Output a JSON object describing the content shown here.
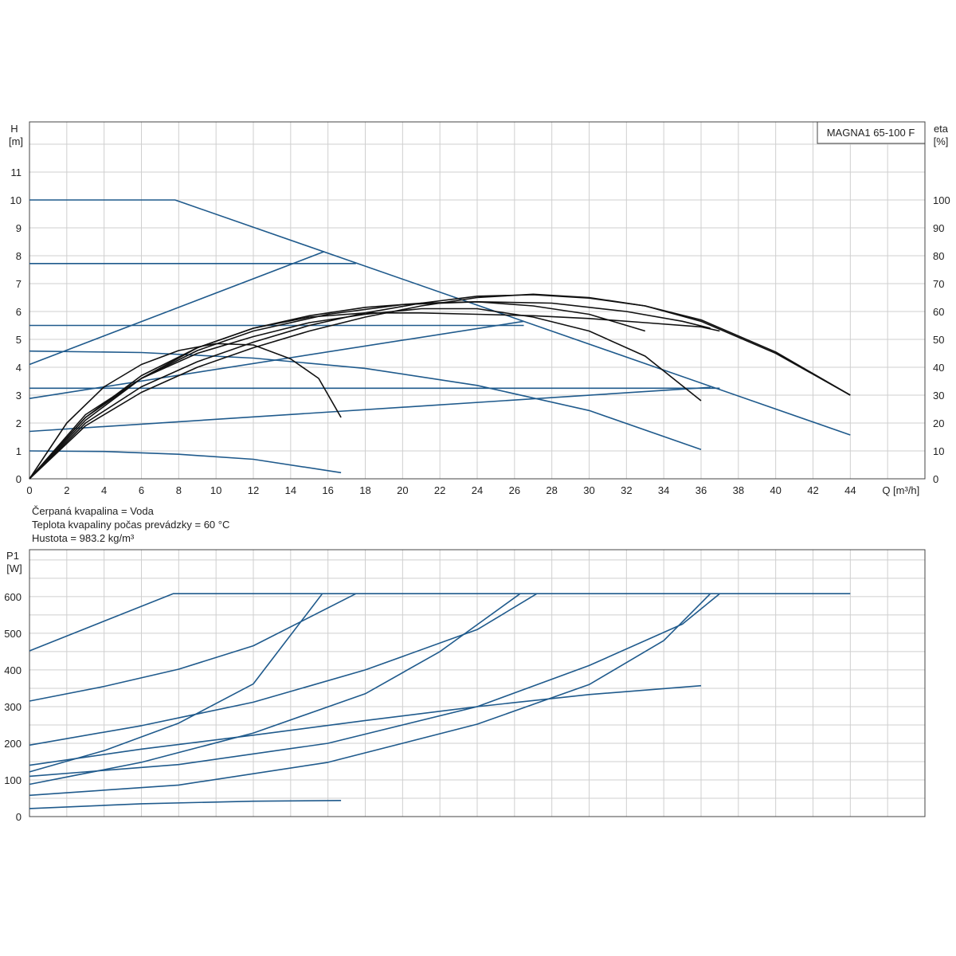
{
  "model_label": "MAGNA1 65-100 F",
  "fluid_info": [
    "Čerpaná kvapalina = Voda",
    "Teplota kvapaliny počas prevádzky = 60 °C",
    "Hustota = 983.2 kg/m³"
  ],
  "colors": {
    "blue": "#1f5a8c",
    "black": "#111111",
    "grid": "#cfcfcf"
  },
  "chart_data": [
    {
      "type": "line",
      "title": "MAGNA1 65-100 F",
      "xlabel": "Q [m³/h]",
      "ylabel_lines": [
        "H",
        "[m]"
      ],
      "y2label_lines": [
        "eta",
        "[%]"
      ],
      "xlim": [
        0,
        48
      ],
      "ylim": [
        0,
        12.8
      ],
      "y2lim": [
        0,
        128
      ],
      "x_ticks": [
        0,
        2,
        4,
        6,
        8,
        10,
        12,
        14,
        16,
        18,
        20,
        22,
        24,
        26,
        28,
        30,
        32,
        34,
        36,
        38,
        40,
        42,
        44
      ],
      "y_ticks": [
        0,
        1,
        2,
        3,
        4,
        5,
        6,
        7,
        8,
        9,
        10,
        11
      ],
      "y2_ticks": [
        0,
        10,
        20,
        30,
        40,
        50,
        60,
        70,
        80,
        90,
        100
      ],
      "grid": true,
      "series": [
        {
          "group": "H",
          "color": "blue",
          "points": [
            [
              0,
              10
            ],
            [
              7.8,
              10
            ],
            [
              44,
              1.57
            ]
          ]
        },
        {
          "group": "H",
          "color": "blue",
          "points": [
            [
              0,
              7.72
            ],
            [
              17.5,
              7.72
            ]
          ]
        },
        {
          "group": "H",
          "color": "blue",
          "points": [
            [
              0,
              5.5
            ],
            [
              26.5,
              5.5
            ]
          ]
        },
        {
          "group": "H",
          "color": "blue",
          "points": [
            [
              0,
              3.25
            ],
            [
              37,
              3.25
            ]
          ]
        },
        {
          "group": "H",
          "color": "blue",
          "points": [
            [
              0,
              4.1
            ],
            [
              15.8,
              8.15
            ]
          ]
        },
        {
          "group": "H",
          "color": "blue",
          "points": [
            [
              0,
              2.88
            ],
            [
              26.5,
              5.65
            ]
          ]
        },
        {
          "group": "H",
          "color": "blue",
          "points": [
            [
              0,
              1.7
            ],
            [
              36.5,
              3.28
            ]
          ]
        },
        {
          "group": "H",
          "color": "blue",
          "points": [
            [
              0,
              4.58
            ],
            [
              6,
              4.53
            ],
            [
              12,
              4.33
            ],
            [
              18,
              3.96
            ],
            [
              24,
              3.35
            ],
            [
              30,
              2.45
            ],
            [
              36,
              1.05
            ]
          ]
        },
        {
          "group": "H",
          "color": "blue",
          "points": [
            [
              0,
              1.0
            ],
            [
              4,
              0.98
            ],
            [
              8,
              0.88
            ],
            [
              12,
              0.7
            ],
            [
              16.7,
              0.22
            ]
          ]
        },
        {
          "group": "eta",
          "color": "black",
          "points": [
            [
              0,
              0
            ],
            [
              2,
              20
            ],
            [
              4,
              33
            ],
            [
              6,
              41
            ],
            [
              8,
              46
            ],
            [
              10,
              48.5
            ],
            [
              12,
              48
            ],
            [
              14,
              43
            ],
            [
              15.5,
              36
            ],
            [
              16.7,
              22
            ]
          ]
        },
        {
          "group": "eta",
          "color": "black",
          "points": [
            [
              0,
              0
            ],
            [
              3,
              23
            ],
            [
              6,
              36
            ],
            [
              9,
              45
            ],
            [
              12,
              51
            ],
            [
              15,
              56
            ],
            [
              18,
              59
            ],
            [
              21,
              61
            ],
            [
              24,
              61
            ],
            [
              27,
              58
            ],
            [
              30,
              53
            ],
            [
              33,
              44
            ],
            [
              36,
              28
            ]
          ]
        },
        {
          "group": "eta",
          "color": "black",
          "points": [
            [
              0,
              0
            ],
            [
              3,
              22
            ],
            [
              6,
              36
            ],
            [
              9,
              47
            ],
            [
              12,
              54
            ],
            [
              15,
              58.5
            ],
            [
              18,
              61.5
            ],
            [
              21,
              63
            ],
            [
              24,
              63.5
            ],
            [
              27,
              62
            ],
            [
              30,
              59
            ],
            [
              33,
              53
            ]
          ]
        },
        {
          "group": "eta",
          "color": "black",
          "points": [
            [
              0,
              0
            ],
            [
              3,
              22
            ],
            [
              6,
              37
            ],
            [
              9,
              47
            ],
            [
              12,
              54
            ],
            [
              15,
              58
            ],
            [
              18,
              59.5
            ],
            [
              21,
              59.5
            ],
            [
              24,
              59
            ],
            [
              27,
              58.5
            ],
            [
              30,
              57.5
            ],
            [
              33,
              56
            ],
            [
              36,
              54.5
            ],
            [
              37,
              53
            ]
          ]
        },
        {
          "group": "eta",
          "color": "black",
          "points": [
            [
              0,
              0
            ],
            [
              3,
              21
            ],
            [
              6,
              36
            ],
            [
              9,
              46
            ],
            [
              12,
              53
            ],
            [
              16,
              59
            ],
            [
              20,
              62.5
            ],
            [
              24,
              63.5
            ],
            [
              28,
              63
            ],
            [
              32,
              60
            ],
            [
              35,
              56.5
            ],
            [
              36.5,
              54
            ]
          ]
        },
        {
          "group": "eta",
          "color": "black",
          "points": [
            [
              0,
              0
            ],
            [
              3,
              20
            ],
            [
              6,
              33
            ],
            [
              9,
              42
            ],
            [
              12,
              49
            ],
            [
              15,
              55
            ],
            [
              18,
              59.5
            ],
            [
              21,
              63
            ],
            [
              24,
              65.5
            ],
            [
              27,
              66
            ],
            [
              30,
              64.8
            ],
            [
              33,
              62
            ],
            [
              36,
              56.5
            ],
            [
              40,
              45
            ],
            [
              44,
              30
            ]
          ]
        },
        {
          "group": "eta",
          "color": "black",
          "points": [
            [
              0,
              0
            ],
            [
              3,
              19
            ],
            [
              6,
              31
            ],
            [
              9,
              40
            ],
            [
              12,
              47
            ],
            [
              15,
              53
            ],
            [
              18,
              58
            ],
            [
              21,
              62
            ],
            [
              24,
              65
            ],
            [
              27,
              66.2
            ],
            [
              30,
              65
            ],
            [
              33,
              62
            ],
            [
              36,
              57
            ],
            [
              40,
              45.5
            ],
            [
              44,
              30
            ]
          ]
        }
      ]
    },
    {
      "type": "line",
      "ylabel_lines": [
        "P1",
        "[W]"
      ],
      "xlim": [
        0,
        48
      ],
      "ylim": [
        0,
        728
      ],
      "y_ticks": [
        0,
        100,
        200,
        300,
        400,
        500,
        600
      ],
      "grid": true,
      "series": [
        {
          "color": "blue",
          "points": [
            [
              0,
              452
            ],
            [
              7.7,
              608
            ],
            [
              44,
              608
            ]
          ]
        },
        {
          "color": "blue",
          "points": [
            [
              0,
              315
            ],
            [
              4,
              355
            ],
            [
              8,
              402
            ],
            [
              12,
              466
            ],
            [
              17.5,
              608
            ]
          ]
        },
        {
          "color": "blue",
          "points": [
            [
              0,
              122
            ],
            [
              4,
              180
            ],
            [
              8,
              255
            ],
            [
              12,
              362
            ],
            [
              15.7,
              608
            ]
          ]
        },
        {
          "color": "blue",
          "points": [
            [
              0,
              195
            ],
            [
              6,
              248
            ],
            [
              12,
              312
            ],
            [
              18,
              400
            ],
            [
              24,
              510
            ],
            [
              27.2,
              608
            ]
          ]
        },
        {
          "color": "blue",
          "points": [
            [
              0,
              88
            ],
            [
              6,
              148
            ],
            [
              12,
              228
            ],
            [
              18,
              335
            ],
            [
              22,
              450
            ],
            [
              26.3,
              608
            ]
          ]
        },
        {
          "color": "blue",
          "points": [
            [
              0,
              140
            ],
            [
              6,
              184
            ],
            [
              12,
              222
            ],
            [
              18,
              262
            ],
            [
              24,
              300
            ],
            [
              30,
              333
            ],
            [
              36,
              357
            ]
          ]
        },
        {
          "color": "blue",
          "points": [
            [
              0,
              110
            ],
            [
              8,
              142
            ],
            [
              16,
              200
            ],
            [
              24,
              300
            ],
            [
              30,
              412
            ],
            [
              35,
              525
            ],
            [
              37,
              608
            ]
          ]
        },
        {
          "color": "blue",
          "points": [
            [
              0,
              58
            ],
            [
              8,
              86
            ],
            [
              16,
              148
            ],
            [
              24,
              252
            ],
            [
              30,
              360
            ],
            [
              34,
              480
            ],
            [
              36.5,
              608
            ]
          ]
        },
        {
          "color": "blue",
          "points": [
            [
              0,
              22
            ],
            [
              6,
              35
            ],
            [
              12,
              42
            ],
            [
              16.7,
              44
            ]
          ]
        }
      ]
    }
  ]
}
